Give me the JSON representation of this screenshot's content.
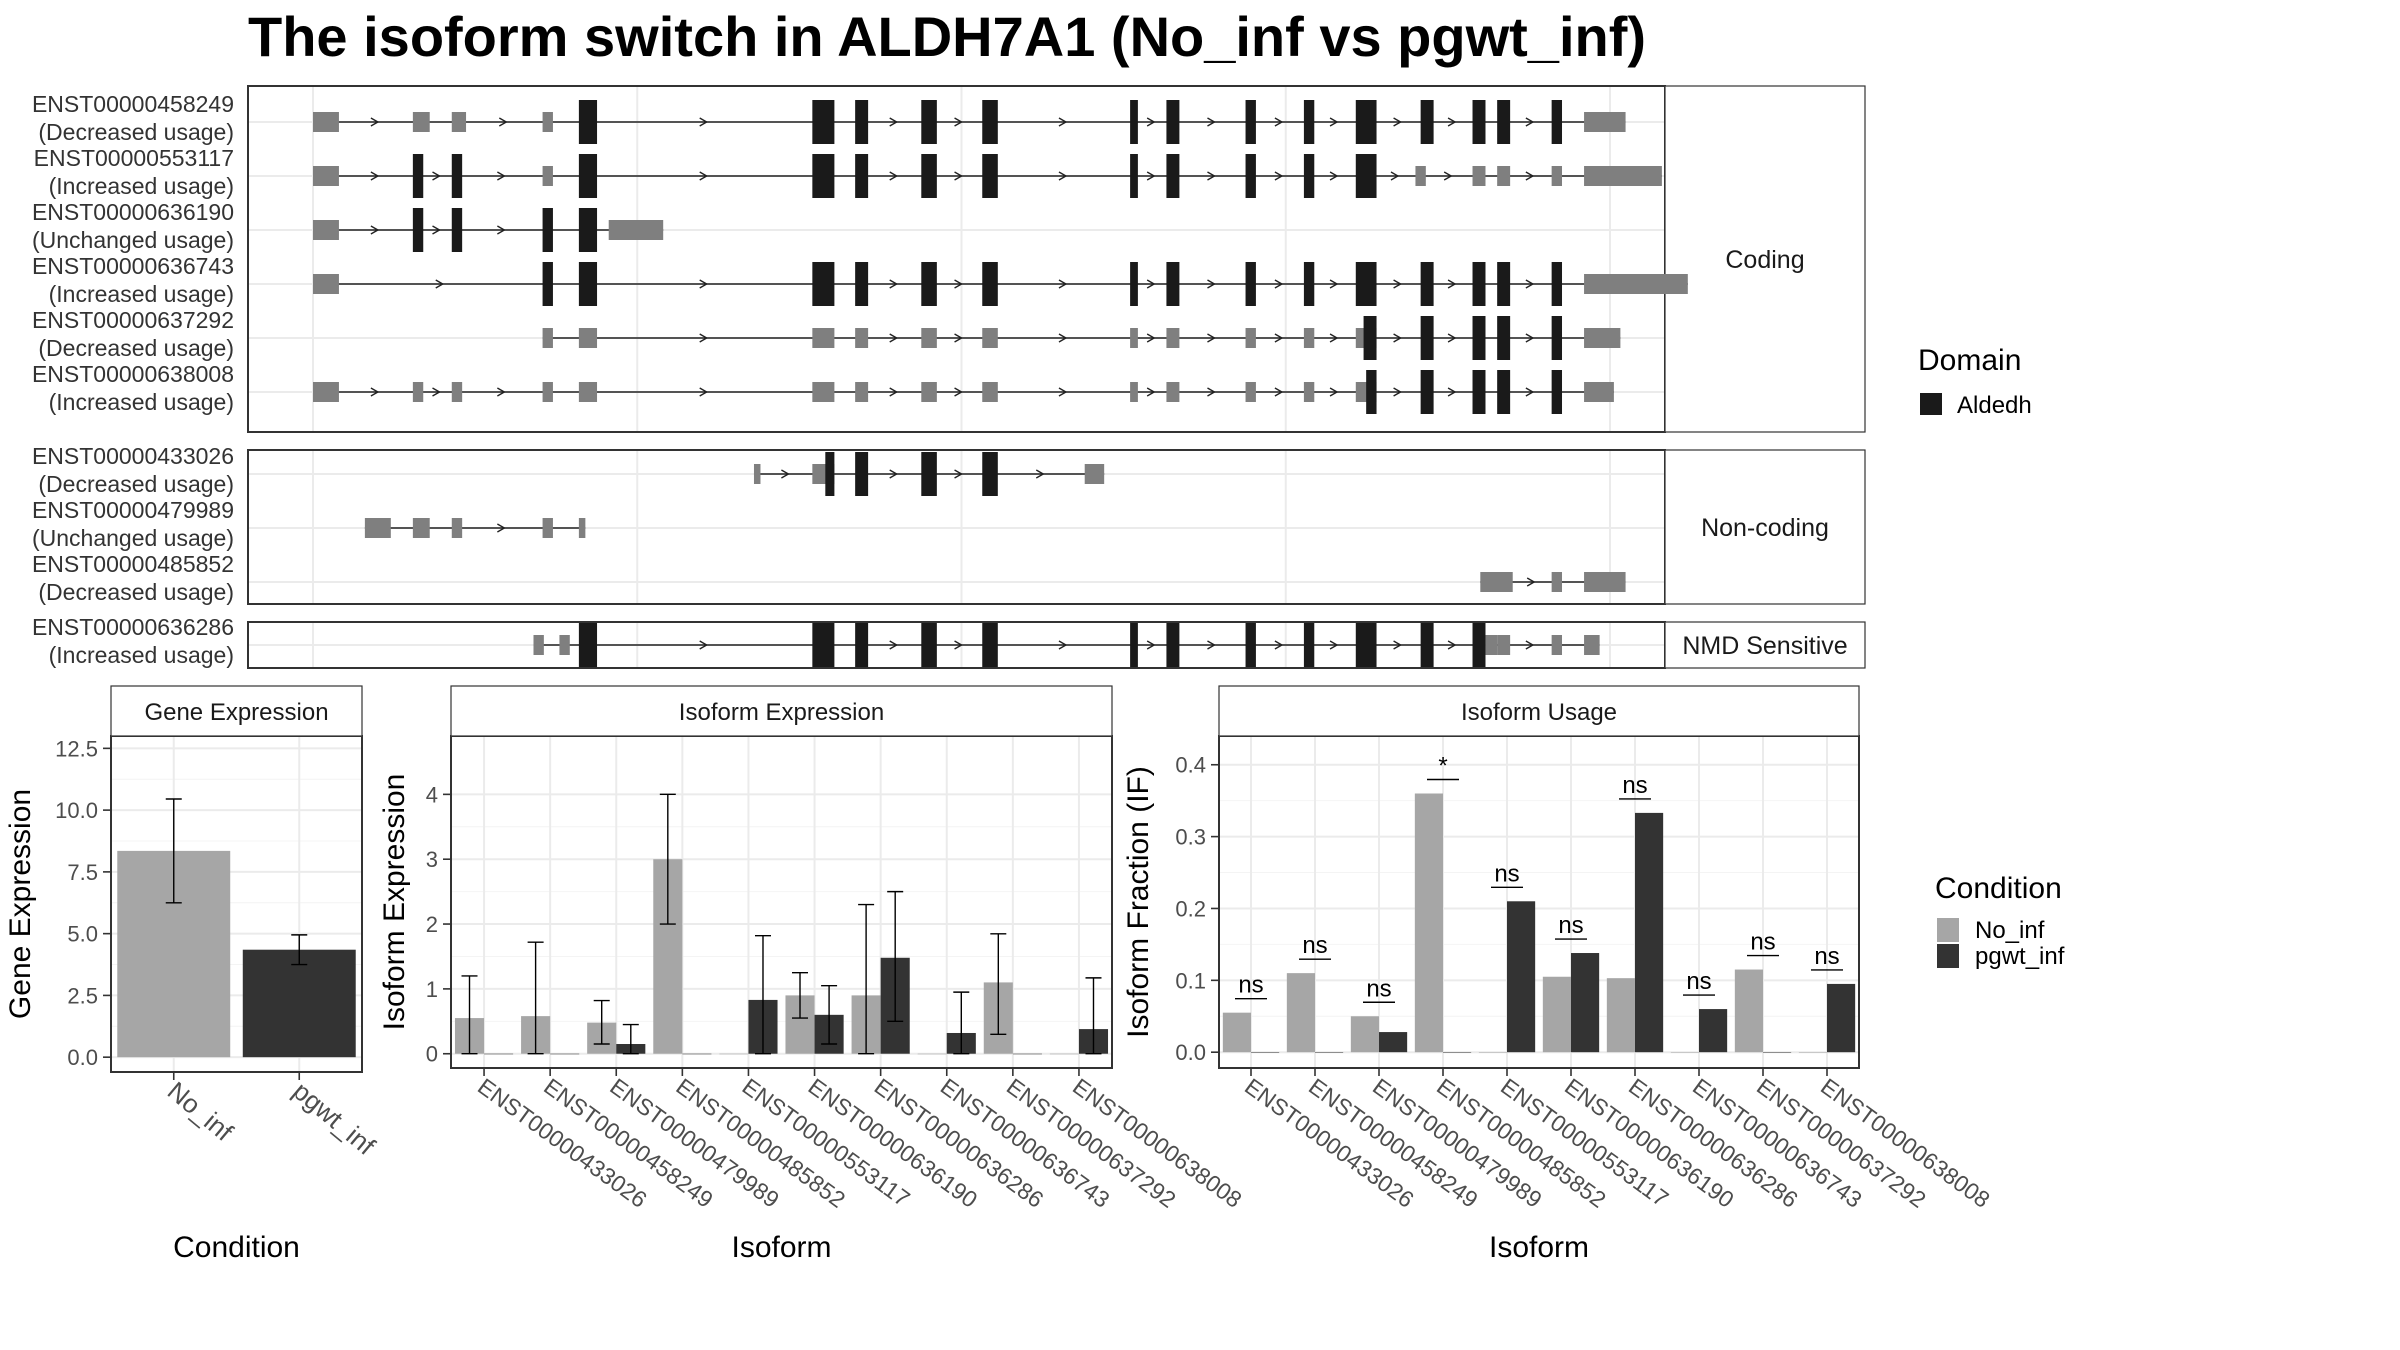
{
  "title": "The isoform switch in ALDH7A1 (No_inf vs pgwt_inf)",
  "colors": {
    "no_inf": "#a6a6a6",
    "pgwt_inf": "#333333",
    "domain": "#1a1a1a",
    "utr": "#7f7f7f",
    "frame": "#333333",
    "grid": "#ebebeb",
    "strip_text": "#1a1a1a"
  },
  "structure": {
    "x_range": [
      0,
      1000
    ],
    "groups": [
      {
        "label": "Coding",
        "isoforms": [
          {
            "id": "ENST00000458249",
            "usage": "(Decreased usage)",
            "exons": [
              [
                0,
                20,
                "utr"
              ],
              [
                77,
                90,
                "utr"
              ],
              [
                107,
                118,
                "utr"
              ],
              [
                177,
                185,
                "utr"
              ],
              [
                205,
                219,
                "cds"
              ],
              [
                385,
                402,
                "cds"
              ],
              [
                418,
                428,
                "cds"
              ],
              [
                469,
                481,
                "cds"
              ],
              [
                516,
                528,
                "cds"
              ],
              [
                630,
                636,
                "cds"
              ],
              [
                658,
                668,
                "cds"
              ],
              [
                719,
                727,
                "cds"
              ],
              [
                764,
                772,
                "cds"
              ],
              [
                804,
                820,
                "cds"
              ],
              [
                854,
                864,
                "cds"
              ],
              [
                894,
                904,
                "cds"
              ],
              [
                913,
                923,
                "cds"
              ],
              [
                955,
                963,
                "cds"
              ],
              [
                980,
                1012,
                "utr"
              ]
            ]
          },
          {
            "id": "ENST00000553117",
            "usage": "(Increased usage)",
            "exons": [
              [
                0,
                20,
                "utr"
              ],
              [
                77,
                85,
                "cds"
              ],
              [
                107,
                115,
                "cds"
              ],
              [
                177,
                185,
                "utr"
              ],
              [
                205,
                219,
                "cds"
              ],
              [
                385,
                402,
                "cds"
              ],
              [
                418,
                428,
                "cds"
              ],
              [
                469,
                481,
                "cds"
              ],
              [
                516,
                528,
                "cds"
              ],
              [
                630,
                636,
                "cds"
              ],
              [
                658,
                668,
                "cds"
              ],
              [
                719,
                727,
                "cds"
              ],
              [
                764,
                772,
                "cds"
              ],
              [
                804,
                820,
                "cds"
              ],
              [
                850,
                858,
                "utr"
              ],
              [
                894,
                904,
                "utr"
              ],
              [
                913,
                923,
                "utr"
              ],
              [
                955,
                963,
                "utr"
              ],
              [
                980,
                1040,
                "utr"
              ]
            ]
          },
          {
            "id": "ENST00000636190",
            "usage": "(Unchanged usage)",
            "exons": [
              [
                0,
                20,
                "utr"
              ],
              [
                77,
                85,
                "cds"
              ],
              [
                107,
                115,
                "cds"
              ],
              [
                177,
                185,
                "cds"
              ],
              [
                205,
                219,
                "cds"
              ],
              [
                228,
                270,
                "utr"
              ]
            ]
          },
          {
            "id": "ENST00000636743",
            "usage": "(Increased usage)",
            "exons": [
              [
                0,
                20,
                "utr"
              ],
              [
                177,
                185,
                "cds"
              ],
              [
                205,
                219,
                "cds"
              ],
              [
                385,
                402,
                "cds"
              ],
              [
                418,
                428,
                "cds"
              ],
              [
                469,
                481,
                "cds"
              ],
              [
                516,
                528,
                "cds"
              ],
              [
                630,
                636,
                "cds"
              ],
              [
                658,
                668,
                "cds"
              ],
              [
                719,
                727,
                "cds"
              ],
              [
                764,
                772,
                "cds"
              ],
              [
                804,
                820,
                "cds"
              ],
              [
                854,
                864,
                "cds"
              ],
              [
                894,
                904,
                "cds"
              ],
              [
                913,
                923,
                "cds"
              ],
              [
                955,
                963,
                "cds"
              ],
              [
                980,
                1060,
                "utr"
              ]
            ]
          },
          {
            "id": "ENST00000637292",
            "usage": "(Decreased usage)",
            "exons": [
              [
                177,
                185,
                "utr"
              ],
              [
                205,
                219,
                "utr"
              ],
              [
                385,
                402,
                "utr"
              ],
              [
                418,
                428,
                "utr"
              ],
              [
                469,
                481,
                "utr"
              ],
              [
                516,
                528,
                "utr"
              ],
              [
                630,
                636,
                "utr"
              ],
              [
                658,
                668,
                "utr"
              ],
              [
                719,
                727,
                "utr"
              ],
              [
                764,
                772,
                "utr"
              ],
              [
                804,
                820,
                "utr"
              ],
              [
                810,
                820,
                "cds"
              ],
              [
                854,
                864,
                "cds"
              ],
              [
                894,
                904,
                "cds"
              ],
              [
                913,
                923,
                "cds"
              ],
              [
                955,
                963,
                "cds"
              ],
              [
                980,
                1008,
                "utr"
              ]
            ]
          },
          {
            "id": "ENST00000638008",
            "usage": "(Increased usage)",
            "exons": [
              [
                0,
                20,
                "utr"
              ],
              [
                77,
                85,
                "utr"
              ],
              [
                107,
                115,
                "utr"
              ],
              [
                177,
                185,
                "utr"
              ],
              [
                205,
                219,
                "utr"
              ],
              [
                385,
                402,
                "utr"
              ],
              [
                418,
                428,
                "utr"
              ],
              [
                469,
                481,
                "utr"
              ],
              [
                516,
                528,
                "utr"
              ],
              [
                630,
                636,
                "utr"
              ],
              [
                658,
                668,
                "utr"
              ],
              [
                719,
                727,
                "utr"
              ],
              [
                764,
                772,
                "utr"
              ],
              [
                804,
                820,
                "utr"
              ],
              [
                812,
                820,
                "cds"
              ],
              [
                854,
                864,
                "cds"
              ],
              [
                894,
                904,
                "cds"
              ],
              [
                913,
                923,
                "cds"
              ],
              [
                955,
                963,
                "cds"
              ],
              [
                980,
                1003,
                "utr"
              ]
            ]
          }
        ]
      },
      {
        "label": "Non-coding",
        "isoforms": [
          {
            "id": "ENST00000433026",
            "usage": "(Decreased usage)",
            "exons": [
              [
                340,
                345,
                "utr"
              ],
              [
                385,
                402,
                "utr"
              ],
              [
                395,
                402,
                "cds"
              ],
              [
                418,
                428,
                "cds"
              ],
              [
                469,
                481,
                "cds"
              ],
              [
                516,
                528,
                "cds"
              ],
              [
                595,
                610,
                "utr"
              ]
            ]
          },
          {
            "id": "ENST00000479989",
            "usage": "(Unchanged usage)",
            "exons": [
              [
                40,
                60,
                "utr"
              ],
              [
                77,
                90,
                "utr"
              ],
              [
                107,
                115,
                "utr"
              ],
              [
                177,
                185,
                "utr"
              ],
              [
                205,
                210,
                "utr"
              ]
            ]
          },
          {
            "id": "ENST00000485852",
            "usage": "(Decreased usage)",
            "exons": [
              [
                900,
                925,
                "utr"
              ],
              [
                955,
                963,
                "utr"
              ],
              [
                980,
                1012,
                "utr"
              ]
            ]
          }
        ]
      },
      {
        "label": "NMD Sensitive",
        "isoforms": [
          {
            "id": "ENST00000636286",
            "usage": "(Increased usage)",
            "exons": [
              [
                170,
                178,
                "utr"
              ],
              [
                190,
                198,
                "utr"
              ],
              [
                205,
                219,
                "cds"
              ],
              [
                385,
                402,
                "cds"
              ],
              [
                418,
                428,
                "cds"
              ],
              [
                469,
                481,
                "cds"
              ],
              [
                516,
                528,
                "cds"
              ],
              [
                630,
                636,
                "cds"
              ],
              [
                658,
                668,
                "cds"
              ],
              [
                719,
                727,
                "cds"
              ],
              [
                764,
                772,
                "cds"
              ],
              [
                804,
                820,
                "cds"
              ],
              [
                854,
                864,
                "cds"
              ],
              [
                894,
                904,
                "cds"
              ],
              [
                904,
                913,
                "utr"
              ],
              [
                913,
                923,
                "utr"
              ],
              [
                955,
                963,
                "utr"
              ],
              [
                980,
                992,
                "utr"
              ]
            ]
          }
        ]
      }
    ]
  },
  "legend_domain": {
    "title": "Domain",
    "items": [
      {
        "label": "Aldedh"
      }
    ]
  },
  "legend_condition": {
    "title": "Condition",
    "items": [
      {
        "label": "No_inf"
      },
      {
        "label": "pgwt_inf"
      }
    ]
  },
  "chart_data": [
    {
      "type": "bar",
      "title": "Gene Expression",
      "xlabel": "Condition",
      "ylabel": "Gene Expression",
      "categories": [
        "No_inf",
        "pgwt_inf"
      ],
      "values": [
        8.35,
        4.35
      ],
      "err_low": [
        6.25,
        3.75
      ],
      "err_high": [
        10.45,
        4.95
      ],
      "ylim": [
        -0.6,
        13.0
      ],
      "yticks": [
        0.0,
        2.5,
        5.0,
        7.5,
        10.0,
        12.5
      ],
      "ytick_labels": [
        "0.0",
        "2.5",
        "5.0",
        "7.5",
        "10.0",
        "12.5"
      ]
    },
    {
      "type": "bar",
      "title": "Isoform Expression",
      "xlabel": "Isoform",
      "ylabel": "Isoform Expression",
      "categories": [
        "ENST00000433026",
        "ENST00000458249",
        "ENST00000479989",
        "ENST00000485852",
        "ENST00000553117",
        "ENST00000636190",
        "ENST00000636286",
        "ENST00000636743",
        "ENST00000637292",
        "ENST00000638008"
      ],
      "series": [
        {
          "name": "No_inf",
          "values": [
            0.55,
            0.58,
            0.48,
            3.0,
            0.0,
            0.9,
            0.9,
            0.0,
            1.1,
            0.0
          ],
          "err_low": [
            0.0,
            0.0,
            0.15,
            2.0,
            0.0,
            0.55,
            0.0,
            0.0,
            0.3,
            0.0
          ],
          "err_high": [
            1.2,
            1.72,
            0.82,
            4.0,
            0.0,
            1.25,
            2.3,
            0.0,
            1.85,
            0.0
          ]
        },
        {
          "name": "pgwt_inf",
          "values": [
            0.0,
            0.0,
            0.15,
            0.0,
            0.83,
            0.6,
            1.48,
            0.32,
            0.0,
            0.38
          ],
          "err_low": [
            0.0,
            0.0,
            0.0,
            0.0,
            0.0,
            0.15,
            0.5,
            0.0,
            0.0,
            0.0
          ],
          "err_high": [
            0.0,
            0.0,
            0.45,
            0.0,
            1.82,
            1.05,
            2.5,
            0.95,
            0.0,
            1.17
          ]
        }
      ],
      "ylim": [
        -0.22,
        4.9
      ],
      "yticks": [
        0,
        1,
        2,
        3,
        4
      ],
      "ytick_labels": [
        "0",
        "1",
        "2",
        "3",
        "4"
      ]
    },
    {
      "type": "bar",
      "title": "Isoform Usage",
      "xlabel": "Isoform",
      "ylabel": "Isoform Fraction (IF)",
      "categories": [
        "ENST00000433026",
        "ENST00000458249",
        "ENST00000479989",
        "ENST00000485852",
        "ENST00000553117",
        "ENST00000636190",
        "ENST00000636286",
        "ENST00000636743",
        "ENST00000637292",
        "ENST00000638008"
      ],
      "series": [
        {
          "name": "No_inf",
          "values": [
            0.055,
            0.11,
            0.05,
            0.36,
            0.0,
            0.105,
            0.103,
            0.0,
            0.115,
            0.0
          ]
        },
        {
          "name": "pgwt_inf",
          "values": [
            0.0,
            0.0,
            0.028,
            0.0,
            0.21,
            0.138,
            0.333,
            0.06,
            0.0,
            0.095
          ]
        }
      ],
      "significance": [
        "ns",
        "ns",
        "ns",
        "*",
        "ns",
        "ns",
        "ns",
        "ns",
        "ns",
        "ns"
      ],
      "ylim": [
        -0.022,
        0.44
      ],
      "yticks": [
        0.0,
        0.1,
        0.2,
        0.3,
        0.4
      ],
      "ytick_labels": [
        "0.0",
        "0.1",
        "0.2",
        "0.3",
        "0.4"
      ]
    }
  ]
}
